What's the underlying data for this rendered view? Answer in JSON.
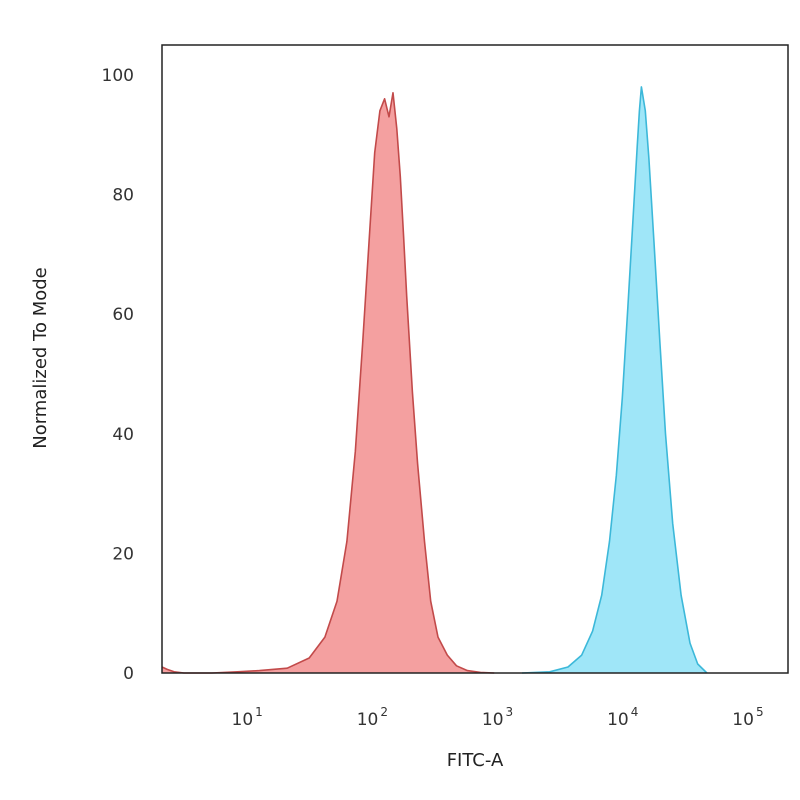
{
  "chart_data": {
    "type": "area",
    "title": "",
    "xlabel": "FITC-A",
    "ylabel": "Normalized To Mode",
    "x_scale": "log",
    "xlim": [
      2,
      200000
    ],
    "ylim": [
      0,
      105
    ],
    "grid": false,
    "legend": "none",
    "x_ticks": [
      {
        "value": 10,
        "base": "10",
        "exp": "1"
      },
      {
        "value": 100,
        "base": "10",
        "exp": "2"
      },
      {
        "value": 1000,
        "base": "10",
        "exp": "3"
      },
      {
        "value": 10000,
        "base": "10",
        "exp": "4"
      },
      {
        "value": 100000,
        "base": "10",
        "exp": "5"
      }
    ],
    "y_ticks": [
      0,
      20,
      40,
      60,
      80,
      100
    ],
    "series": [
      {
        "color": "#f4a0a0",
        "stroke": "#c24a4a",
        "x": [
          2,
          2.2,
          2.5,
          3,
          5,
          8,
          12,
          20,
          30,
          40,
          50,
          60,
          70,
          80,
          90,
          100,
          110,
          120,
          130,
          140,
          150,
          160,
          170,
          180,
          200,
          220,
          250,
          280,
          320,
          380,
          450,
          550,
          700,
          900
        ],
        "y": [
          1.0,
          0.6,
          0.2,
          0,
          0,
          0.2,
          0.4,
          0.8,
          2.5,
          6,
          12,
          22,
          37,
          55,
          72,
          87,
          94,
          96,
          93,
          97,
          91,
          83,
          73,
          63,
          47,
          35,
          22,
          12,
          6,
          3,
          1.2,
          0.4,
          0.1,
          0
        ]
      },
      {
        "color": "#9fe6f8",
        "stroke": "#3cb8d9",
        "x": [
          1500,
          2500,
          3500,
          4500,
          5500,
          6500,
          7500,
          8500,
          9500,
          10500,
          11500,
          12500,
          13000,
          13500,
          14500,
          15500,
          17000,
          19000,
          21000,
          24000,
          28000,
          33000,
          38000,
          45000
        ],
        "y": [
          0,
          0.2,
          1,
          3,
          7,
          13,
          22,
          33,
          46,
          61,
          75,
          88,
          94,
          98,
          94,
          86,
          72,
          55,
          40,
          25,
          13,
          5,
          1.5,
          0
        ]
      }
    ]
  }
}
